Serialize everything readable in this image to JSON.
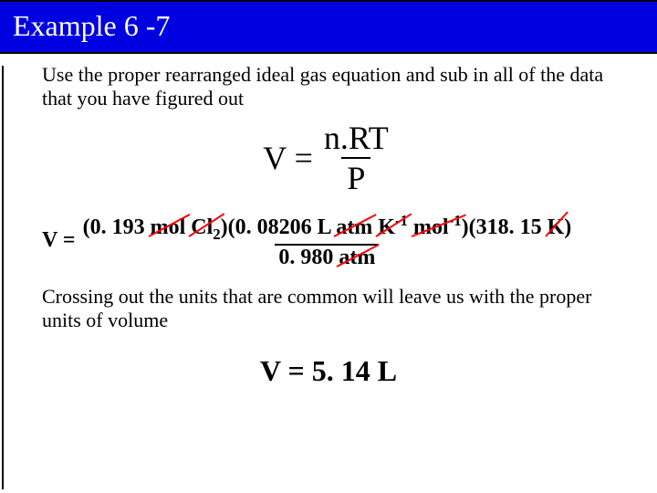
{
  "title": "Example 6 -7",
  "para1": "Use the proper rearranged ideal gas equation and sub in all of the data that you have figured out",
  "eq1": {
    "lhs": "V =",
    "num": "n.RT",
    "den": "P"
  },
  "eq2": {
    "lhs": "V =",
    "n_val": "(0. 193",
    "mol1": "mol",
    "cl": "Cl",
    "cl_sub": "2",
    "close1": ")(0. 08206",
    "L": "L",
    "atm1": "atm",
    "K": "K",
    "neg1": "-1",
    "mol2": "mol",
    "neg1b": "-1",
    "temp": ")(318. 15",
    "Kunit": "K",
    "close3": ")",
    "den_val": "0. 980",
    "den_atm": "atm"
  },
  "para2": "Crossing out the units that are common will leave us with the proper units of volume",
  "result": "V = 5. 14 L",
  "colors": {
    "title_bg": "#0000e0",
    "strike": "#ff0000"
  }
}
